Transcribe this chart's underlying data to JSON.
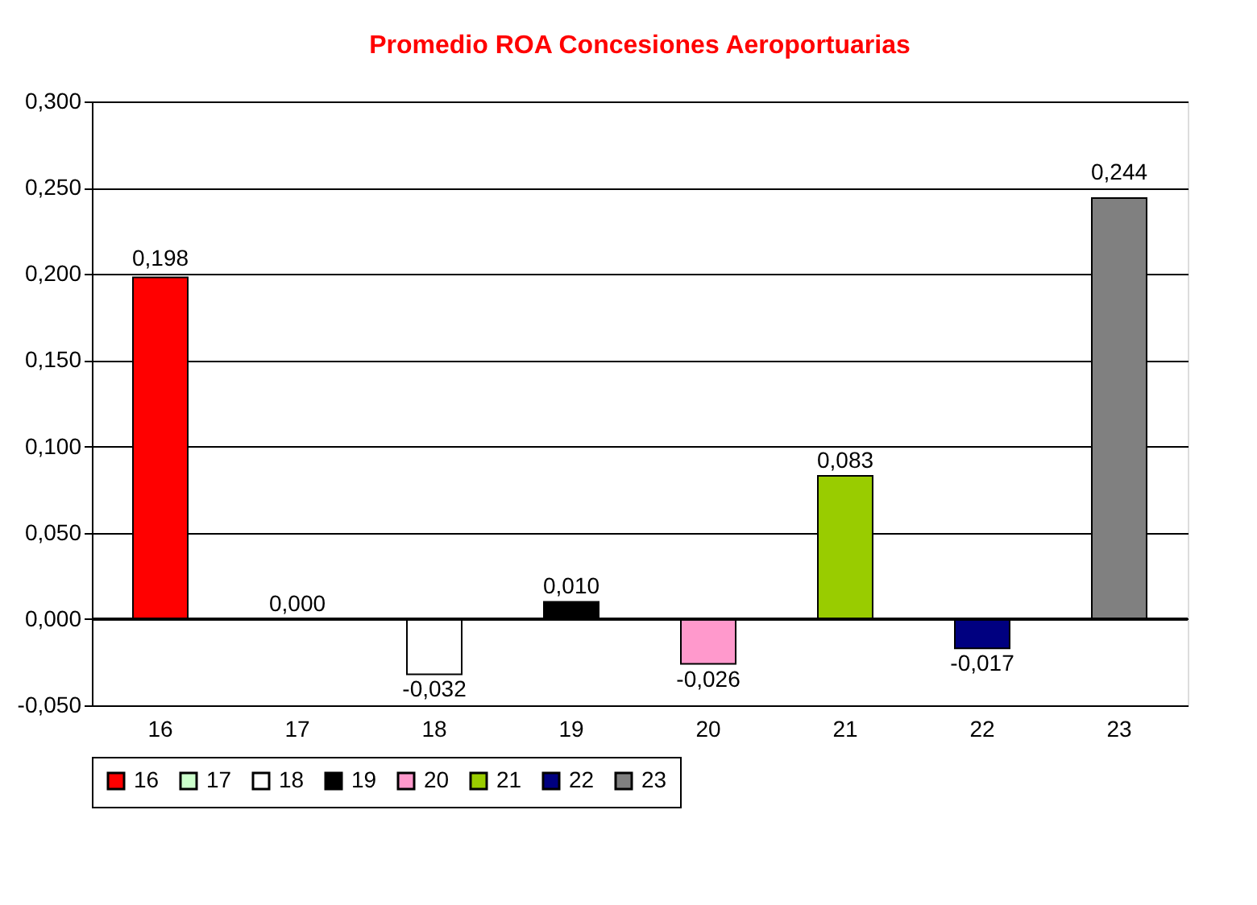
{
  "chart_data": {
    "type": "bar",
    "title": "Promedio ROA  Concesiones  Aeroportuarias",
    "categories": [
      "16",
      "17",
      "18",
      "19",
      "20",
      "21",
      "22",
      "23"
    ],
    "series": [
      {
        "name": "16",
        "color": "#ff0000",
        "values": [
          0.198,
          null,
          null,
          null,
          null,
          null,
          null,
          null
        ]
      },
      {
        "name": "17",
        "color": "#ccffcc",
        "values": [
          null,
          0.0,
          null,
          null,
          null,
          null,
          null,
          null
        ]
      },
      {
        "name": "18",
        "color": "#ffffff",
        "values": [
          null,
          null,
          -0.032,
          null,
          null,
          null,
          null,
          null
        ]
      },
      {
        "name": "19",
        "color": "#000000",
        "values": [
          null,
          null,
          null,
          0.01,
          null,
          null,
          null,
          null
        ]
      },
      {
        "name": "20",
        "color": "#ff99cc",
        "values": [
          null,
          null,
          null,
          null,
          -0.026,
          null,
          null,
          null
        ]
      },
      {
        "name": "21",
        "color": "#99cc00",
        "values": [
          null,
          null,
          null,
          null,
          null,
          0.083,
          null,
          null
        ]
      },
      {
        "name": "22",
        "color": "#000080",
        "values": [
          null,
          null,
          null,
          null,
          null,
          null,
          -0.017,
          null
        ]
      },
      {
        "name": "23",
        "color": "#808080",
        "values": [
          null,
          null,
          null,
          null,
          null,
          null,
          null,
          0.244
        ]
      }
    ],
    "value_labels": [
      "0,198",
      "0,000",
      "-0,032",
      "0,010",
      "-0,026",
      "0,083",
      "-0,017",
      "0,244"
    ],
    "ylim": [
      -0.05,
      0.3
    ],
    "yticks": [
      {
        "value": -0.05,
        "label": "-0,050"
      },
      {
        "value": 0,
        "label": "0,000"
      },
      {
        "value": 0.05,
        "label": "0,050"
      },
      {
        "value": 0.1,
        "label": "0,100"
      },
      {
        "value": 0.15,
        "label": "0,150"
      },
      {
        "value": 0.2,
        "label": "0,200"
      },
      {
        "value": 0.25,
        "label": "0,250"
      },
      {
        "value": 0.3,
        "label": "0,300"
      }
    ],
    "grid": "y",
    "legend": "bottom"
  }
}
